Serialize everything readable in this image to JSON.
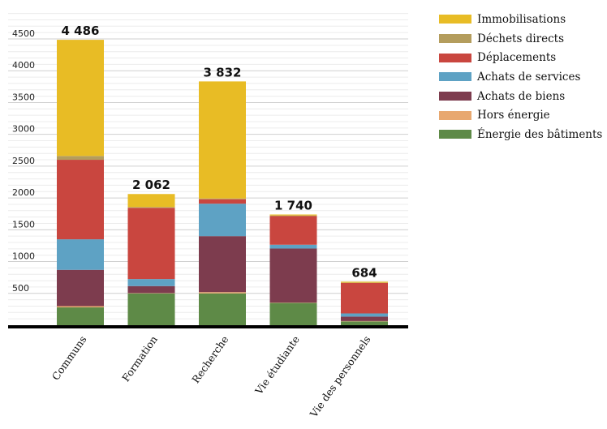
{
  "chart_data": {
    "type": "bar",
    "stacked": true,
    "categories": [
      "Communs",
      "Formation",
      "Recherche",
      "Vie étudiante",
      "Vie des personnels"
    ],
    "series": [
      {
        "name": "Énergie des bâtiments",
        "color": "#5e8a47",
        "values": [
          280,
          500,
          500,
          350,
          60
        ]
      },
      {
        "name": "Hors énergie",
        "color": "#e8a870",
        "values": [
          20,
          5,
          20,
          5,
          5
        ]
      },
      {
        "name": "Achats de biens",
        "color": "#7d3c4e",
        "values": [
          570,
          110,
          880,
          850,
          70
        ]
      },
      {
        "name": "Achats de services",
        "color": "#5ea2c4",
        "values": [
          480,
          110,
          510,
          60,
          50
        ]
      },
      {
        "name": "Déplacements",
        "color": "#c9463f",
        "values": [
          1250,
          1120,
          70,
          450,
          480
        ]
      },
      {
        "name": "Déchets directs",
        "color": "#b49d5d",
        "values": [
          60,
          12,
          12,
          10,
          4
        ]
      },
      {
        "name": "Immobilisations",
        "color": "#e8bc25",
        "values": [
          1826,
          205,
          1840,
          15,
          15
        ]
      }
    ],
    "totals": [
      "4 486",
      "2 062",
      "3 832",
      "1 740",
      "684"
    ],
    "yticks": [
      "500",
      "1000",
      "1500",
      "2000",
      "2500",
      "3000",
      "3500",
      "4000",
      "4500"
    ],
    "ylim": [
      0,
      5000
    ],
    "legend_order": [
      "Immobilisations",
      "Déchets directs",
      "Déplacements",
      "Achats de services",
      "Achats de biens",
      "Hors énergie",
      "Énergie des bâtiments"
    ],
    "legend_position": "top-right",
    "grid": true
  }
}
